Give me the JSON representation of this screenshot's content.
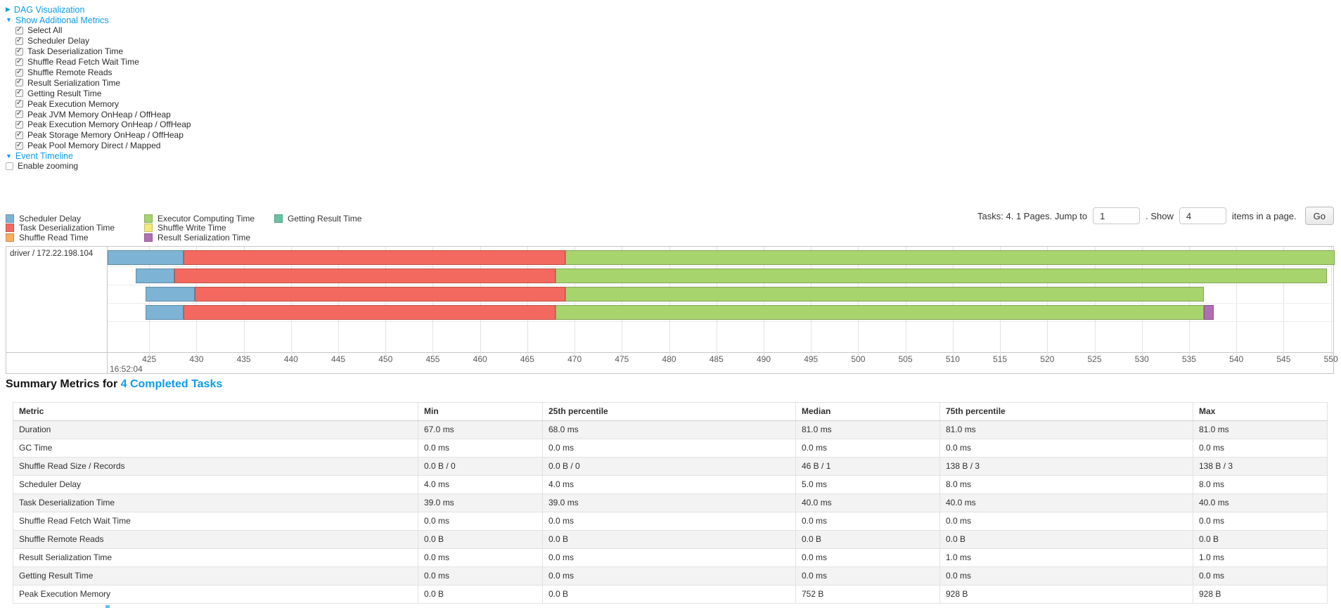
{
  "colors": {
    "link": "#0d9ce8",
    "scheduler_delay": "#7db3d5",
    "task_deserialization": "#f4695f",
    "shuffle_read": "#fcad60",
    "executor_computing": "#a8d46e",
    "shuffle_write": "#f3e97c",
    "result_serialization": "#b06fb2",
    "getting_result": "#68c2a4"
  },
  "icons": {
    "collapsed_arrow": "▶",
    "expanded_arrow": "▼"
  },
  "toggles": {
    "dag": "DAG Visualization",
    "metrics": "Show Additional Metrics",
    "timeline": "Event Timeline"
  },
  "metric_options": [
    "Select All",
    "Scheduler Delay",
    "Task Deserialization Time",
    "Shuffle Read Fetch Wait Time",
    "Shuffle Remote Reads",
    "Result Serialization Time",
    "Getting Result Time",
    "Peak Execution Memory",
    "Peak JVM Memory OnHeap / OffHeap",
    "Peak Execution Memory OnHeap / OffHeap",
    "Peak Storage Memory OnHeap / OffHeap",
    "Peak Pool Memory Direct / Mapped"
  ],
  "enable_zooming": "Enable zooming",
  "pagination": {
    "summary": "Tasks: 4. 1 Pages. Jump to",
    "jump_value": "1",
    "mid_text": ". Show",
    "show_value": "4",
    "suffix_text": "items in a page.",
    "go_label": "Go"
  },
  "chart_data": {
    "type": "timeline",
    "group_label": "driver / 172.22.198.104",
    "x_start_label": "16:52:04",
    "axis": {
      "min": 420.6,
      "max": 550.4
    },
    "ticks": [
      425,
      430,
      435,
      440,
      445,
      450,
      455,
      460,
      465,
      470,
      475,
      480,
      485,
      490,
      495,
      500,
      505,
      510,
      515,
      520,
      525,
      530,
      535,
      540,
      545,
      550
    ],
    "legend_columns": [
      [
        {
          "label": "Scheduler Delay",
          "color_key": "scheduler_delay"
        },
        {
          "label": "Task Deserialization Time",
          "color_key": "task_deserialization"
        },
        {
          "label": "Shuffle Read Time",
          "color_key": "shuffle_read"
        }
      ],
      [
        {
          "label": "Executor Computing Time",
          "color_key": "executor_computing"
        },
        {
          "label": "Shuffle Write Time",
          "color_key": "shuffle_write"
        },
        {
          "label": "Result Serialization Time",
          "color_key": "result_serialization"
        }
      ],
      [
        {
          "label": "Getting Result Time",
          "color_key": "getting_result"
        }
      ]
    ],
    "tasks": [
      {
        "segments": [
          {
            "type": "scheduler_delay",
            "start": 420.6,
            "end": 428.6
          },
          {
            "type": "task_deserialization",
            "start": 428.6,
            "end": 469.0
          },
          {
            "type": "executor_computing",
            "start": 469.0,
            "end": 550.4
          }
        ]
      },
      {
        "segments": [
          {
            "type": "scheduler_delay",
            "start": 423.6,
            "end": 427.7
          },
          {
            "type": "task_deserialization",
            "start": 427.7,
            "end": 468.0
          },
          {
            "type": "executor_computing",
            "start": 468.0,
            "end": 549.6
          }
        ]
      },
      {
        "segments": [
          {
            "type": "scheduler_delay",
            "start": 424.6,
            "end": 429.8
          },
          {
            "type": "task_deserialization",
            "start": 429.8,
            "end": 469.0
          },
          {
            "type": "executor_computing",
            "start": 469.0,
            "end": 536.6
          }
        ]
      },
      {
        "segments": [
          {
            "type": "scheduler_delay",
            "start": 424.6,
            "end": 428.6
          },
          {
            "type": "task_deserialization",
            "start": 428.6,
            "end": 468.0
          },
          {
            "type": "executor_computing",
            "start": 468.0,
            "end": 536.6
          },
          {
            "type": "result_serialization",
            "start": 536.6,
            "end": 537.6
          }
        ]
      }
    ]
  },
  "summary": {
    "title_prefix": "Summary Metrics for ",
    "title_link": "4 Completed Tasks",
    "headers": [
      "Metric",
      "Min",
      "25th percentile",
      "Median",
      "75th percentile",
      "Max"
    ],
    "rows": [
      [
        "Duration",
        "67.0 ms",
        "68.0 ms",
        "81.0 ms",
        "81.0 ms",
        "81.0 ms"
      ],
      [
        "GC Time",
        "0.0 ms",
        "0.0 ms",
        "0.0 ms",
        "0.0 ms",
        "0.0 ms"
      ],
      [
        "Shuffle Read Size / Records",
        "0.0 B / 0",
        "0.0 B / 0",
        "46 B / 1",
        "138 B / 3",
        "138 B / 3"
      ],
      [
        "Scheduler Delay",
        "4.0 ms",
        "4.0 ms",
        "5.0 ms",
        "8.0 ms",
        "8.0 ms"
      ],
      [
        "Task Deserialization Time",
        "39.0 ms",
        "39.0 ms",
        "40.0 ms",
        "40.0 ms",
        "40.0 ms"
      ],
      [
        "Shuffle Read Fetch Wait Time",
        "0.0 ms",
        "0.0 ms",
        "0.0 ms",
        "0.0 ms",
        "0.0 ms"
      ],
      [
        "Shuffle Remote Reads",
        "0.0 B",
        "0.0 B",
        "0.0 B",
        "0.0 B",
        "0.0 B"
      ],
      [
        "Result Serialization Time",
        "0.0 ms",
        "0.0 ms",
        "0.0 ms",
        "1.0 ms",
        "1.0 ms"
      ],
      [
        "Getting Result Time",
        "0.0 ms",
        "0.0 ms",
        "0.0 ms",
        "0.0 ms",
        "0.0 ms"
      ],
      [
        "Peak Execution Memory",
        "0.0 B",
        "0.0 B",
        "752 B",
        "928 B",
        "928 B"
      ]
    ]
  }
}
